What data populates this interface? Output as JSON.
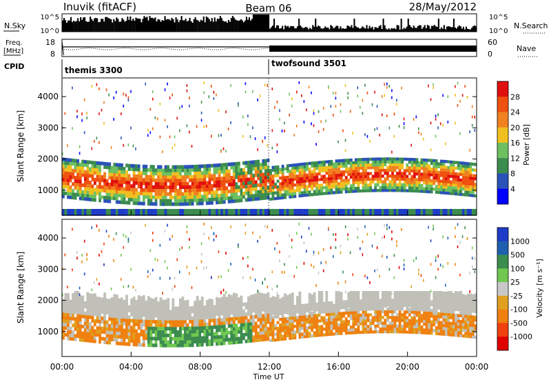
{
  "header": {
    "station": "Inuvik (fitACF)",
    "beam": "Beam 06",
    "date": "28/May/2012"
  },
  "colors": {
    "power_scale": [
      "#0000ff",
      "#2a52b8",
      "#3c8c50",
      "#6cc060",
      "#f0c020",
      "#f08020",
      "#f05010",
      "#e01010"
    ],
    "velocity_scale": [
      "#1e3cc8",
      "#2060b0",
      "#3c8c50",
      "#70c850",
      "#c8c8c8",
      "#e0a020",
      "#f08010",
      "#f04010",
      "#e00000"
    ],
    "ground_scatter": "#c0c0b8",
    "background": "#ffffff"
  },
  "chart_data": [
    {
      "type": "bar",
      "name_panel": "noise",
      "left_label": "N.Sky",
      "right_label": "N.Search",
      "left_ticks": [
        "10^5",
        "10^0"
      ],
      "right_ticks": [
        "10^5",
        "10^0"
      ],
      "x_range": [
        0,
        24
      ]
    },
    {
      "type": "line",
      "name_panel": "frequency",
      "left_label": "Freq.",
      "left_unit": "[MHz]",
      "right_label": "Nave",
      "left_ticks": [
        "18",
        "8"
      ],
      "right_ticks": [
        "60",
        "0"
      ],
      "freq_range_mhz": [
        8,
        18
      ],
      "nave_range": [
        0,
        60
      ],
      "x_range": [
        0,
        24
      ]
    },
    {
      "type": "table",
      "name_panel": "cpid",
      "label": "CPID",
      "segments": [
        {
          "label": "themis 3300",
          "start_hour": 0,
          "end_hour": 12
        },
        {
          "label": "twofsound 3501",
          "start_hour": 12,
          "end_hour": 24
        }
      ]
    },
    {
      "type": "heatmap",
      "name_panel": "power",
      "ylabel": "Slant Range [km]",
      "y_ticks": [
        1000,
        2000,
        3000,
        4000
      ],
      "ylim": [
        200,
        4600
      ],
      "x_range": [
        0,
        24
      ],
      "colorbar_label": "Power [dB]",
      "colorbar_ticks": [
        "28",
        "24",
        "20",
        "16",
        "12",
        "8",
        "4"
      ],
      "colorbar_range": [
        0,
        32
      ]
    },
    {
      "type": "heatmap",
      "name_panel": "velocity",
      "ylabel": "Slant Range [km]",
      "y_ticks": [
        1000,
        2000,
        3000,
        4000
      ],
      "ylim": [
        200,
        4600
      ],
      "x_range": [
        0,
        24
      ],
      "colorbar_label": "Velocity [m s⁻¹]",
      "colorbar_ticks": [
        "1000",
        "500",
        "100",
        "25",
        "-25",
        "-100",
        "-500",
        "-1000"
      ]
    }
  ],
  "x_axis": {
    "label": "Time UT",
    "ticks": [
      "00:00",
      "04:00",
      "08:00",
      "12:00",
      "16:00",
      "20:00",
      "00:00"
    ],
    "tick_hours": [
      0,
      4,
      8,
      12,
      16,
      20,
      24
    ]
  }
}
